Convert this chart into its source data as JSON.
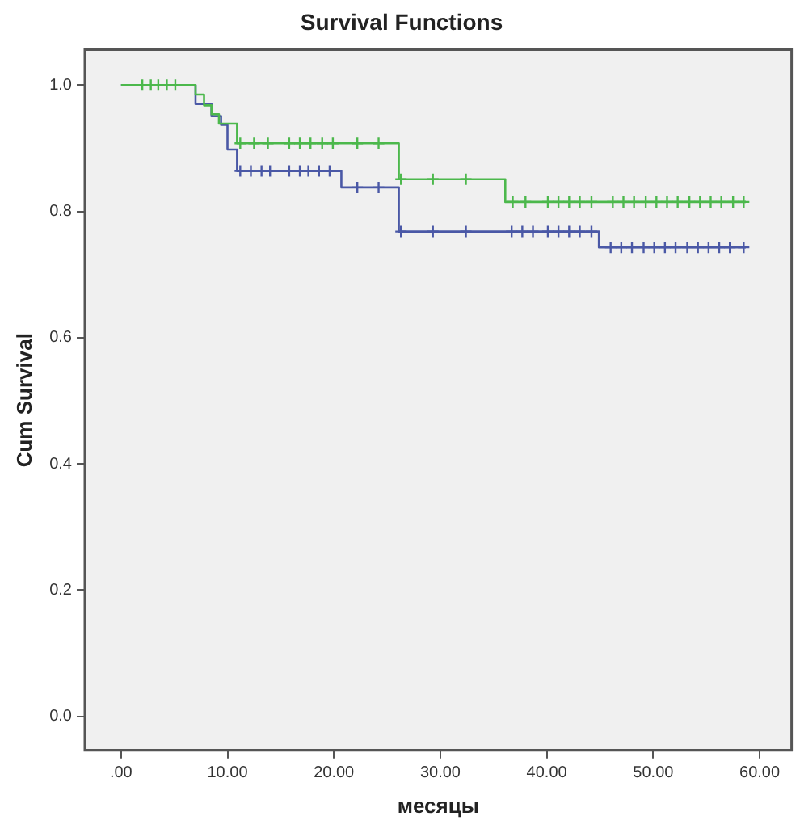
{
  "chart_data": {
    "type": "step",
    "title": "Survival Functions",
    "xlabel": "месяцы",
    "ylabel": "Cum Survival",
    "xlim": [
      -3.4,
      63
    ],
    "ylim": [
      -0.054,
      1.056
    ],
    "xticks": [
      {
        "value": 0,
        "label": ".00"
      },
      {
        "value": 10,
        "label": "10.00"
      },
      {
        "value": 20,
        "label": "20.00"
      },
      {
        "value": 30,
        "label": "30.00"
      },
      {
        "value": 40,
        "label": "40.00"
      },
      {
        "value": 50,
        "label": "50.00"
      },
      {
        "value": 60,
        "label": "60.00"
      }
    ],
    "yticks": [
      {
        "value": 0,
        "label": "0.0"
      },
      {
        "value": 0.2,
        "label": "0.2"
      },
      {
        "value": 0.4,
        "label": "0.4"
      },
      {
        "value": 0.6,
        "label": "0.6"
      },
      {
        "value": 0.8,
        "label": "0.8"
      },
      {
        "value": 1,
        "label": "1.0"
      }
    ],
    "grid": false,
    "legend": false,
    "marker": "none",
    "series": [
      {
        "color": "#4cb84c",
        "x": [
          0,
          7.0,
          7.8,
          8.5,
          9.2,
          10.9,
          26.1,
          36.1,
          58.7
        ],
        "values": [
          1,
          0.985,
          0.968,
          0.954,
          0.939,
          0.908,
          0.851,
          0.815,
          0.815
        ]
      },
      {
        "color": "#4a58a6",
        "x": [
          0,
          7.0,
          8.5,
          9.4,
          10.0,
          10.9,
          20.7,
          26.1,
          44.9,
          58.7
        ],
        "values": [
          1,
          0.97,
          0.951,
          0.937,
          0.898,
          0.864,
          0.838,
          0.768,
          0.743,
          0.743
        ]
      },
      {
        "type": "scatter",
        "marker": "cross",
        "color": "#4cb84c",
        "x": [
          2.0,
          2.8,
          3.5,
          4.3,
          5.1,
          11.2,
          12.5,
          13.8,
          15.8,
          16.8,
          17.8,
          18.9,
          19.9,
          22.2,
          24.2,
          26.3,
          29.3,
          32.4,
          36.8,
          38.0,
          40.1,
          41.1,
          42.1,
          43.1,
          44.2,
          46.2,
          47.2,
          48.2,
          49.3,
          50.3,
          51.3,
          52.3,
          53.4,
          54.4,
          55.4,
          56.4,
          57.5,
          58.5
        ],
        "values": [
          1,
          1,
          1,
          1,
          1,
          0.908,
          0.908,
          0.908,
          0.908,
          0.908,
          0.908,
          0.908,
          0.908,
          0.908,
          0.908,
          0.851,
          0.851,
          0.851,
          0.815,
          0.815,
          0.815,
          0.815,
          0.815,
          0.815,
          0.815,
          0.815,
          0.815,
          0.815,
          0.815,
          0.815,
          0.815,
          0.815,
          0.815,
          0.815,
          0.815,
          0.815,
          0.815,
          0.815
        ]
      },
      {
        "type": "scatter",
        "marker": "cross",
        "color": "#4a58a6",
        "x": [
          11.2,
          12.2,
          13.2,
          14.0,
          15.8,
          16.8,
          17.6,
          18.6,
          19.6,
          22.2,
          24.2,
          26.3,
          29.3,
          32.4,
          36.7,
          37.7,
          38.7,
          40.1,
          41.1,
          42.1,
          43.1,
          44.2,
          46.0,
          47.0,
          48.0,
          49.1,
          50.1,
          51.1,
          52.1,
          53.2,
          54.2,
          55.2,
          56.2,
          57.2,
          58.5
        ],
        "values": [
          0.864,
          0.864,
          0.864,
          0.864,
          0.864,
          0.864,
          0.864,
          0.864,
          0.864,
          0.838,
          0.838,
          0.768,
          0.768,
          0.768,
          0.768,
          0.768,
          0.768,
          0.768,
          0.768,
          0.768,
          0.768,
          0.768,
          0.743,
          0.743,
          0.743,
          0.743,
          0.743,
          0.743,
          0.743,
          0.743,
          0.743,
          0.743,
          0.743,
          0.743,
          0.743
        ]
      }
    ]
  }
}
